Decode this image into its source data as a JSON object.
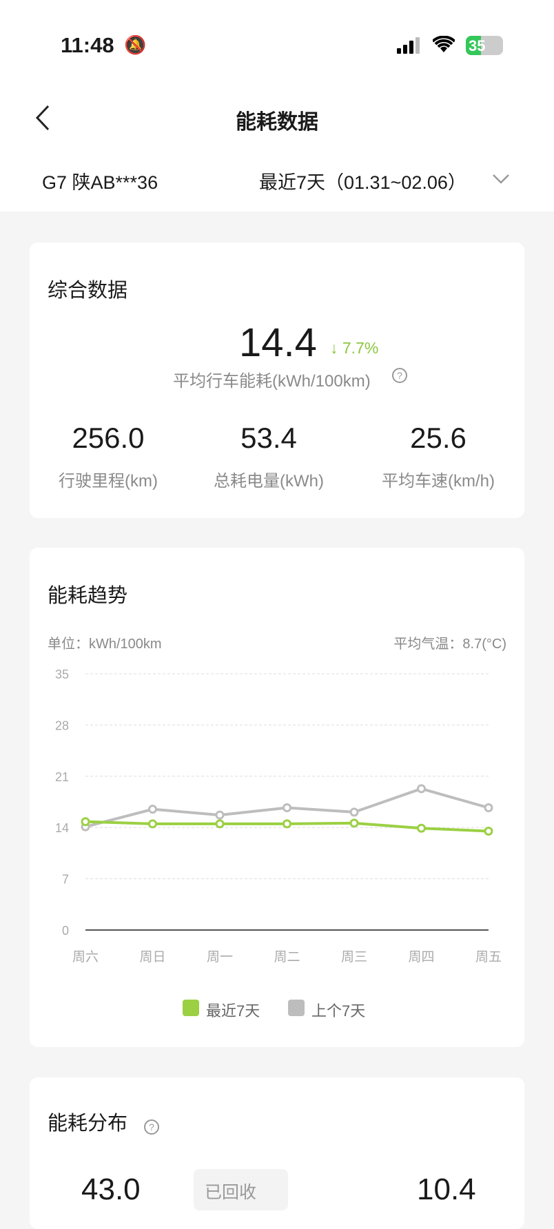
{
  "status_bar": {
    "time": "11:48",
    "battery": "35"
  },
  "nav": {
    "title": "能耗数据"
  },
  "vehicle": {
    "name": "G7 陕AB***36",
    "period": "最近7天（01.31~02.06）"
  },
  "summary": {
    "title": "综合数据",
    "avg_value": "14.4",
    "change": "7.7%",
    "change_dir": "down",
    "avg_label": "平均行车能耗(kWh/100km)",
    "stats": [
      {
        "value": "256.0",
        "label": "行驶里程(km)"
      },
      {
        "value": "53.4",
        "label": "总耗电量(kWh)"
      },
      {
        "value": "25.6",
        "label": "平均车速(km/h)"
      }
    ]
  },
  "trend": {
    "title": "能耗趋势",
    "unit": "单位：kWh/100km",
    "temp": "平均气温：8.7(°C)"
  },
  "colors": {
    "recent": "#9bd043",
    "previous": "#bdbdbd",
    "accent_green": "#8cc63f"
  },
  "chart_data": {
    "type": "line",
    "categories": [
      "周六",
      "周日",
      "周一",
      "周二",
      "周三",
      "周四",
      "周五"
    ],
    "ylim": [
      0,
      35
    ],
    "yticks": [
      "0",
      "7",
      "14",
      "21",
      "28",
      "35"
    ],
    "grid": true,
    "legend_placement": "bottom",
    "series": [
      {
        "name": "最近7天",
        "values": [
          14.8,
          14.5,
          14.5,
          14.5,
          14.6,
          13.9,
          13.5
        ]
      },
      {
        "name": "上个7天",
        "values": [
          14.1,
          16.5,
          15.7,
          16.7,
          16.1,
          19.3,
          16.7
        ]
      }
    ]
  },
  "distribution": {
    "title": "能耗分布",
    "left_value": "43.0",
    "badge": "已回收",
    "right_value": "10.4"
  }
}
